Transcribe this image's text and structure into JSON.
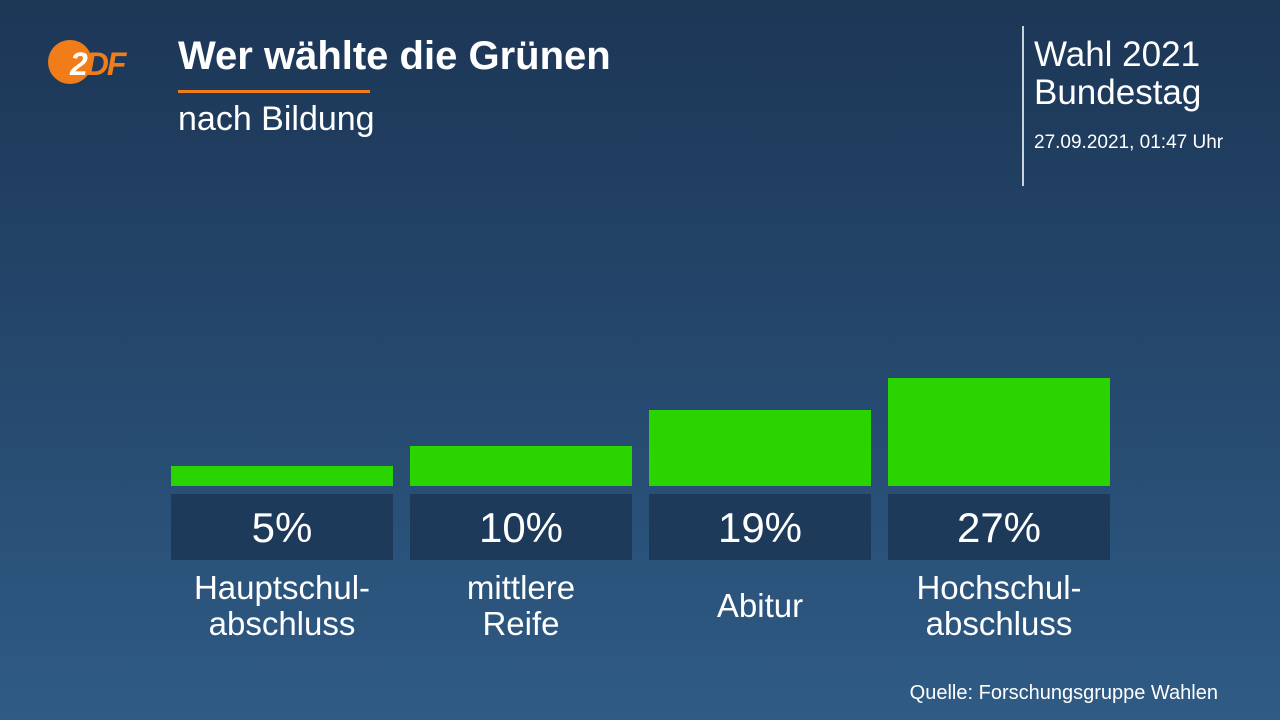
{
  "branding": {
    "logo_text_primary": "2",
    "logo_text_secondary": "DF",
    "accent": "#f07d1a"
  },
  "header": {
    "title": "Wer wählte die Grünen",
    "subtitle": "nach Bildung",
    "election_line1": "Wahl 2021",
    "election_line2": "Bundestag",
    "timestamp": "27.09.2021, 01:47 Uhr"
  },
  "chart_data": {
    "type": "bar",
    "title": "Wer wählte die Grünen",
    "subtitle": "nach Bildung",
    "categories": [
      [
        "Hauptschul-",
        "abschluss"
      ],
      [
        "mittlere",
        "Reife"
      ],
      [
        "Abitur"
      ],
      [
        "Hochschul-",
        "abschluss"
      ]
    ],
    "values": [
      5,
      10,
      19,
      27
    ],
    "value_labels": [
      "5%",
      "10%",
      "19%",
      "27%"
    ],
    "unit": "%",
    "bar_color": "#2ad400",
    "label_box_color": "#1e3a5a",
    "ylim": [
      0,
      30
    ]
  },
  "footer": {
    "source": "Quelle: Forschungsgruppe Wahlen"
  }
}
